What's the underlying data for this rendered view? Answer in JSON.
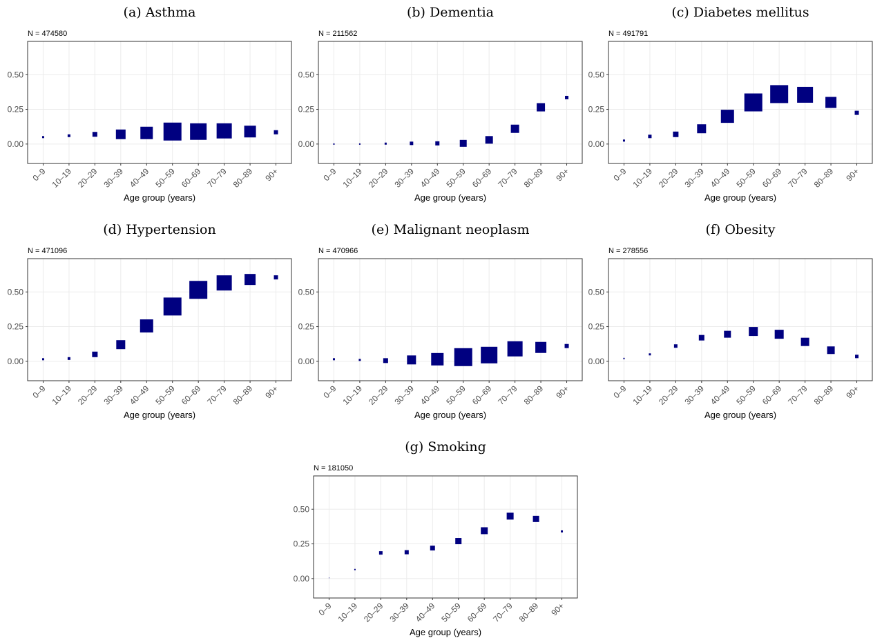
{
  "chart_data": [
    {
      "type": "scatter",
      "title": "(a) Asthma",
      "subtitle": "N = 474580",
      "x_label": "Age group (years)",
      "categories": [
        "0–9",
        "10–19",
        "20–29",
        "30–39",
        "40–49",
        "50–59",
        "60–69",
        "70–79",
        "80–89",
        "90+"
      ],
      "values": [
        0.05,
        0.06,
        0.07,
        0.07,
        0.08,
        0.09,
        0.09,
        0.095,
        0.09,
        0.085
      ],
      "sizes": [
        3,
        4,
        7,
        14,
        18,
        26,
        24,
        22,
        17,
        6
      ],
      "color": "#000080",
      "ylim": [
        -0.14,
        0.74
      ],
      "yticks": [
        {
          "value": 0,
          "label": "0.00"
        },
        {
          "value": 0.25,
          "label": "0.25"
        },
        {
          "value": 0.5,
          "label": "0.50"
        }
      ],
      "grid": true
    },
    {
      "type": "scatter",
      "title": "(b) Dementia",
      "subtitle": "N = 211562",
      "x_label": "Age group (years)",
      "categories": [
        "0–9",
        "10–19",
        "20–29",
        "30–39",
        "40–49",
        "50–59",
        "60–69",
        "70–79",
        "80–89",
        "90+"
      ],
      "values": [
        0,
        0,
        0.003,
        0.005,
        0.005,
        0.005,
        0.03,
        0.11,
        0.265,
        0.335
      ],
      "sizes": [
        2,
        2,
        3,
        5,
        6,
        10,
        11,
        12,
        12,
        5
      ],
      "color": "#000080",
      "ylim": [
        -0.14,
        0.74
      ],
      "yticks": [
        {
          "value": 0,
          "label": "0.00"
        },
        {
          "value": 0.25,
          "label": "0.25"
        },
        {
          "value": 0.5,
          "label": "0.50"
        }
      ],
      "grid": true
    },
    {
      "type": "scatter",
      "title": "(c) Diabetes mellitus",
      "subtitle": "N = 491791",
      "x_label": "Age group (years)",
      "categories": [
        "0–9",
        "10–19",
        "20–29",
        "30–39",
        "40–49",
        "50–59",
        "60–69",
        "70–79",
        "80–89",
        "90+"
      ],
      "values": [
        0.025,
        0.055,
        0.07,
        0.11,
        0.2,
        0.3,
        0.36,
        0.355,
        0.3,
        0.225
      ],
      "sizes": [
        3,
        5,
        8,
        13,
        19,
        26,
        26,
        23,
        16,
        6
      ],
      "color": "#000080",
      "ylim": [
        -0.14,
        0.74
      ],
      "yticks": [
        {
          "value": 0,
          "label": "0.00"
        },
        {
          "value": 0.25,
          "label": "0.25"
        },
        {
          "value": 0.5,
          "label": "0.50"
        }
      ],
      "grid": true
    },
    {
      "type": "scatter",
      "title": "(d) Hypertension",
      "subtitle": "N = 471096",
      "x_label": "Age group (years)",
      "categories": [
        "0–9",
        "10–19",
        "20–29",
        "30–39",
        "40–49",
        "50–59",
        "60–69",
        "70–79",
        "80–89",
        "90+"
      ],
      "values": [
        0.015,
        0.02,
        0.05,
        0.12,
        0.255,
        0.395,
        0.515,
        0.565,
        0.59,
        0.605
      ],
      "sizes": [
        3,
        4,
        8,
        13,
        19,
        26,
        26,
        22,
        16,
        6
      ],
      "color": "#000080",
      "ylim": [
        -0.14,
        0.74
      ],
      "yticks": [
        {
          "value": 0,
          "label": "0.00"
        },
        {
          "value": 0.25,
          "label": "0.25"
        },
        {
          "value": 0.5,
          "label": "0.50"
        }
      ],
      "grid": true
    },
    {
      "type": "scatter",
      "title": "(e) Malignant neoplasm",
      "subtitle": "N = 470966",
      "x_label": "Age group (years)",
      "categories": [
        "0–9",
        "10–19",
        "20–29",
        "30–39",
        "40–49",
        "50–59",
        "60–69",
        "70–79",
        "80–89",
        "90+"
      ],
      "values": [
        0.015,
        0.01,
        0.005,
        0.01,
        0.015,
        0.03,
        0.045,
        0.09,
        0.1,
        0.11
      ],
      "sizes": [
        3,
        3,
        7,
        13,
        18,
        26,
        24,
        22,
        16,
        6
      ],
      "color": "#000080",
      "ylim": [
        -0.14,
        0.74
      ],
      "yticks": [
        {
          "value": 0,
          "label": "0.00"
        },
        {
          "value": 0.25,
          "label": "0.25"
        },
        {
          "value": 0.5,
          "label": "0.50"
        }
      ],
      "grid": true
    },
    {
      "type": "scatter",
      "title": "(f) Obesity",
      "subtitle": "N = 278556",
      "x_label": "Age group (years)",
      "categories": [
        "0–9",
        "10–19",
        "20–29",
        "30–39",
        "40–49",
        "50–59",
        "60–69",
        "70–79",
        "80–89",
        "90+"
      ],
      "values": [
        0.02,
        0.05,
        0.11,
        0.17,
        0.195,
        0.215,
        0.195,
        0.14,
        0.08,
        0.035
      ],
      "sizes": [
        2,
        3,
        5,
        8,
        10,
        13,
        13,
        12,
        11,
        5
      ],
      "color": "#000080",
      "ylim": [
        -0.14,
        0.74
      ],
      "yticks": [
        {
          "value": 0,
          "label": "0.00"
        },
        {
          "value": 0.25,
          "label": "0.25"
        },
        {
          "value": 0.5,
          "label": "0.50"
        }
      ],
      "grid": true
    },
    {
      "type": "scatter",
      "title": "(g) Smoking",
      "subtitle": "N = 181050",
      "x_label": "Age group (years)",
      "categories": [
        "0–9",
        "10–19",
        "20–29",
        "30–39",
        "40–49",
        "50–59",
        "60–69",
        "70–79",
        "80–89",
        "90+"
      ],
      "values": [
        0.005,
        0.065,
        0.185,
        0.19,
        0.22,
        0.27,
        0.345,
        0.45,
        0.43,
        0.34
      ],
      "sizes": [
        1,
        2,
        5,
        6,
        7,
        9,
        10,
        10,
        9,
        3
      ],
      "color": "#000080",
      "ylim": [
        -0.14,
        0.74
      ],
      "yticks": [
        {
          "value": 0,
          "label": "0.00"
        },
        {
          "value": 0.25,
          "label": "0.25"
        },
        {
          "value": 0.5,
          "label": "0.50"
        }
      ],
      "grid": true
    }
  ]
}
